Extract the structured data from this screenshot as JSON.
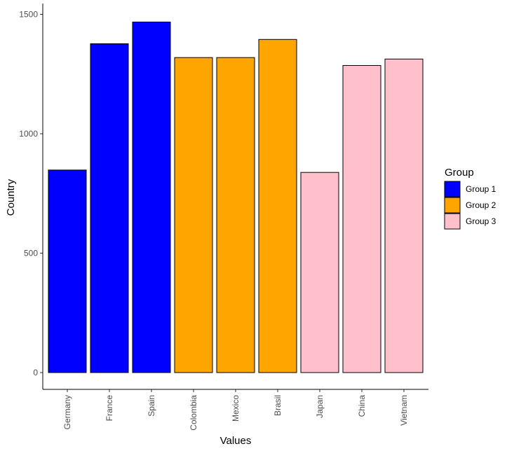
{
  "chart_data": {
    "type": "bar",
    "xlabel": "Values",
    "ylabel": "Country",
    "categories": [
      "Germany",
      "France",
      "Spain",
      "Colombia",
      "Mexico",
      "Brasil",
      "Japan",
      "China",
      "Vietnam"
    ],
    "values": [
      848,
      1377,
      1468,
      1319,
      1319,
      1395,
      838,
      1286,
      1313
    ],
    "groups": [
      "Group 1",
      "Group 1",
      "Group 1",
      "Group 2",
      "Group 2",
      "Group 2",
      "Group 3",
      "Group 3",
      "Group 3"
    ],
    "ylim": [
      0,
      1500
    ],
    "yticks": [
      0,
      500,
      1000,
      1500
    ],
    "grid": false,
    "legend": {
      "title": "Group",
      "position": "right",
      "entries": [
        {
          "name": "Group 1",
          "color": "#0000ff"
        },
        {
          "name": "Group 2",
          "color": "#ffa500"
        },
        {
          "name": "Group 3",
          "color": "#ffc0cb"
        }
      ]
    }
  }
}
